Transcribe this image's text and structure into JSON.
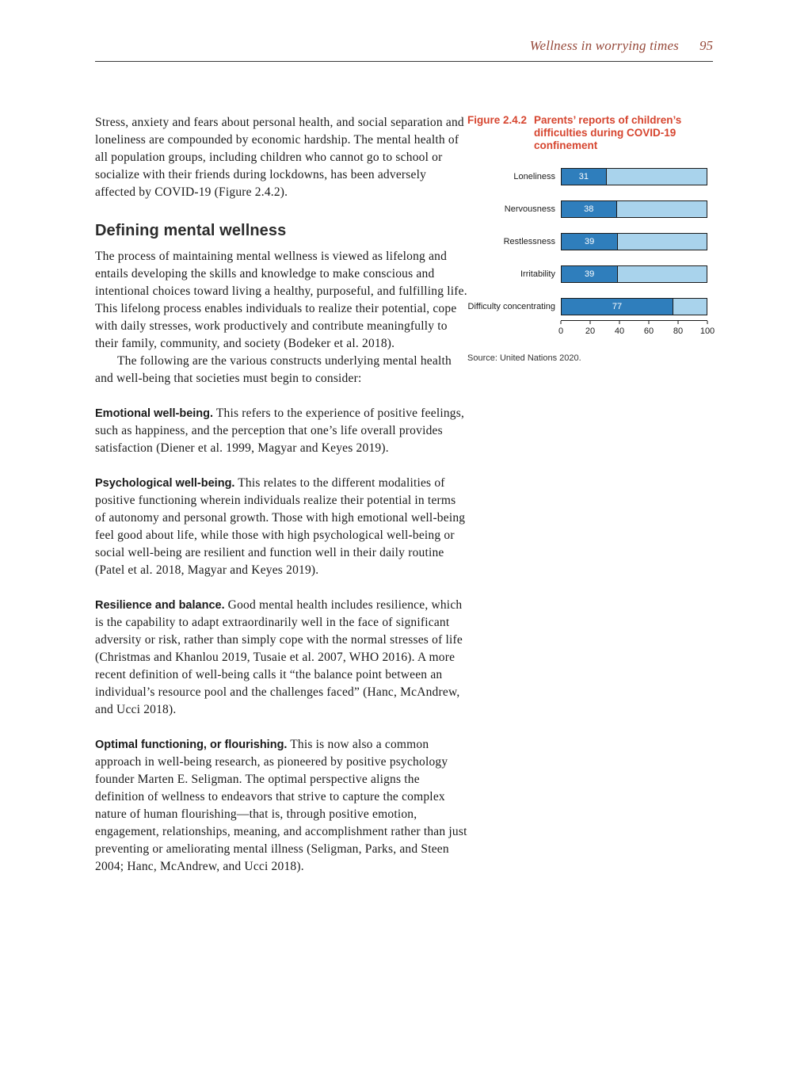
{
  "colors": {
    "header_accent": "#96493a",
    "figure_accent": "#d6452f"
  },
  "header": {
    "title": "Wellness in worrying times",
    "page_number": "95"
  },
  "article": {
    "para1": "Stress, anxiety and fears about personal health, and social separation and loneliness are compounded by economic hardship. The mental health of all population groups, including children who cannot go to school or socialize with their friends during lockdowns, has been adversely affected by COVID-19 (Figure 2.4.2).",
    "heading": "Defining mental wellness",
    "para2": "The process of maintaining mental wellness is viewed as lifelong and entails developing the skills and knowledge to make conscious and intentional choices toward living a healthy, purposeful, and fulfilling life. This lifelong process enables individuals to realize their potential, cope with daily stresses, work productively and contribute meaningfully to their family, community, and society (Bodeker et al. 2018).",
    "para3": "The following are the various constructs underlying mental health and well-being that societies must begin to consider:",
    "constructs": [
      {
        "lead": "Emotional well-being.",
        "text": "This refers to the experience of positive feelings, such as happiness, and the perception that one’s life overall provides satisfaction (Diener et al. 1999, Magyar and Keyes 2019)."
      },
      {
        "lead": "Psychological well-being.",
        "text": "This relates to the different modalities of positive functioning wherein individuals realize their potential in terms of autonomy and personal growth. Those with high emotional well-being feel good about life, while those with high psychological well-being or social well-being are resilient and function well in their daily routine (Patel et al. 2018, Magyar and Keyes 2019)."
      },
      {
        "lead": "Resilience and balance.",
        "text": "Good mental health includes resilience, which is the capability to adapt extraordinarily well in the face of significant adversity or risk, rather than simply cope with the normal stresses of life (Christmas and Khanlou 2019, Tusaie et al. 2007, WHO 2016). A more recent definition of well-being calls it “the balance point between an individual’s resource pool and the challenges faced” (Hanc, McAndrew, and Ucci 2018)."
      },
      {
        "lead": "Optimal functioning, or flourishing.",
        "text": "This is now also a common approach in well-being research, as pioneered by positive psychology founder Marten E. Seligman. The optimal perspective aligns the definition of wellness to endeavors that strive to capture the complex nature of human flourishing—that is, through positive emotion, engagement, relationships, meaning, and accomplishment rather than just preventing or ameliorating mental illness (Seligman, Parks, and Steen 2004; Hanc, McAndrew, and Ucci 2018)."
      }
    ]
  },
  "figure": {
    "label": "Figure 2.4.2",
    "title": "Parents’ reports of children’s difficulties during COVID-19 confinement",
    "source": "Source: United Nations 2020."
  },
  "chart_data": {
    "type": "bar",
    "orientation": "horizontal",
    "title": "Parents’ reports of children’s difficulties during COVID-19 confinement",
    "categories": [
      "Loneliness",
      "Nervousness",
      "Restlessness",
      "Irritability",
      "Difficulty concentrating"
    ],
    "values": [
      31,
      38,
      39,
      39,
      77
    ],
    "value_labels_inside_bar": true,
    "remainder_shown_to": 100,
    "xlim": [
      0,
      100
    ],
    "x_ticks": [
      0,
      20,
      40,
      60,
      80,
      100
    ],
    "grid": false,
    "legend": "none",
    "colors": {
      "bar_fill": "#2f7ebc",
      "bar_remainder": "#a9d3ec",
      "bar_border": "#1a1a1a"
    }
  }
}
